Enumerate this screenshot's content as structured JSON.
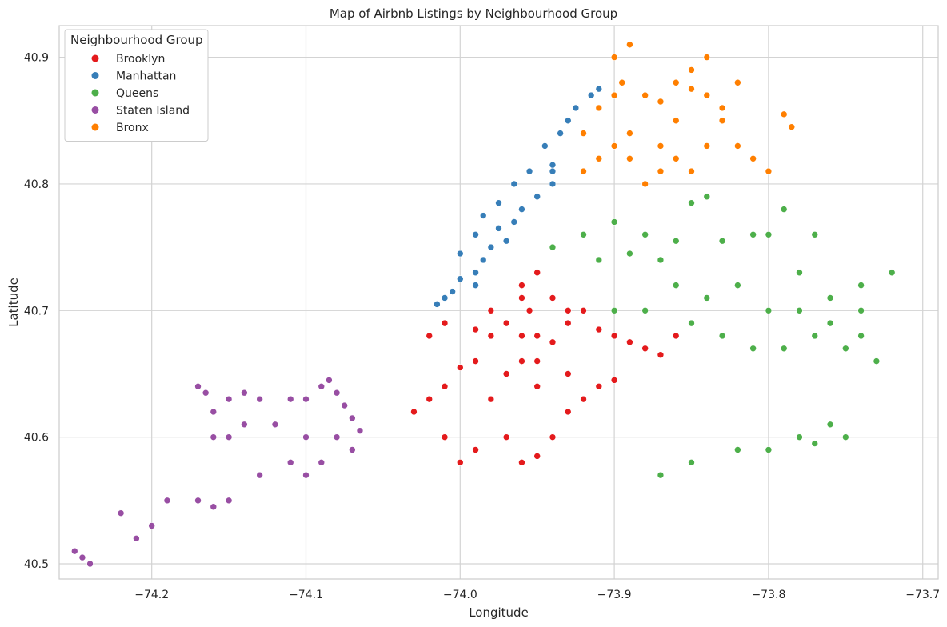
{
  "chart_data": {
    "type": "scatter",
    "title": "Map of Airbnb Listings by Neighbourhood Group",
    "xlabel": "Longitude",
    "ylabel": "Latitude",
    "xlim": [
      -74.26,
      -73.69
    ],
    "ylim": [
      40.488,
      40.925
    ],
    "xticks": [
      -74.2,
      -74.1,
      -74.0,
      -73.9,
      -73.8,
      -73.7
    ],
    "xtick_labels": [
      "−74.2",
      "−74.1",
      "−74.0",
      "−73.9",
      "−73.8",
      "−73.7"
    ],
    "yticks": [
      40.5,
      40.6,
      40.7,
      40.8,
      40.9
    ],
    "ytick_labels": [
      "40.5",
      "40.6",
      "40.7",
      "40.8",
      "40.9"
    ],
    "grid": true,
    "legend": {
      "title": "Neighbourhood Group",
      "position": "top-left"
    },
    "series": [
      {
        "name": "Brooklyn",
        "color": "#e41a1c",
        "points": [
          [
            -73.95,
            40.73
          ],
          [
            -73.96,
            40.72
          ],
          [
            -73.94,
            40.71
          ],
          [
            -73.955,
            40.7
          ],
          [
            -73.97,
            40.69
          ],
          [
            -73.99,
            40.685
          ],
          [
            -73.98,
            40.68
          ],
          [
            -73.96,
            40.68
          ],
          [
            -73.95,
            40.68
          ],
          [
            -73.94,
            40.675
          ],
          [
            -73.93,
            40.69
          ],
          [
            -73.92,
            40.7
          ],
          [
            -73.91,
            40.685
          ],
          [
            -73.9,
            40.68
          ],
          [
            -73.89,
            40.675
          ],
          [
            -73.88,
            40.67
          ],
          [
            -73.87,
            40.665
          ],
          [
            -73.86,
            40.68
          ],
          [
            -73.99,
            40.66
          ],
          [
            -74.0,
            40.655
          ],
          [
            -74.02,
            40.63
          ],
          [
            -74.03,
            40.62
          ],
          [
            -74.01,
            40.6
          ],
          [
            -74.0,
            40.58
          ],
          [
            -73.99,
            40.59
          ],
          [
            -73.97,
            40.6
          ],
          [
            -73.96,
            40.58
          ],
          [
            -73.95,
            40.585
          ],
          [
            -73.94,
            40.6
          ],
          [
            -73.93,
            40.62
          ],
          [
            -73.92,
            40.63
          ],
          [
            -73.91,
            40.64
          ],
          [
            -73.9,
            40.645
          ],
          [
            -73.93,
            40.65
          ],
          [
            -73.95,
            40.64
          ],
          [
            -73.97,
            40.65
          ],
          [
            -73.98,
            40.63
          ],
          [
            -74.01,
            40.64
          ],
          [
            -74.02,
            40.68
          ],
          [
            -74.01,
            40.69
          ],
          [
            -73.98,
            40.7
          ],
          [
            -73.96,
            40.71
          ],
          [
            -73.93,
            40.7
          ],
          [
            -73.95,
            40.66
          ],
          [
            -73.96,
            40.66
          ]
        ]
      },
      {
        "name": "Manhattan",
        "color": "#377eb8",
        "points": [
          [
            -74.015,
            40.705
          ],
          [
            -74.005,
            40.715
          ],
          [
            -74.0,
            40.725
          ],
          [
            -73.99,
            40.73
          ],
          [
            -73.985,
            40.74
          ],
          [
            -74.0,
            40.745
          ],
          [
            -73.98,
            40.75
          ],
          [
            -73.97,
            40.755
          ],
          [
            -73.99,
            40.76
          ],
          [
            -73.975,
            40.765
          ],
          [
            -73.965,
            40.77
          ],
          [
            -73.96,
            40.78
          ],
          [
            -73.985,
            40.775
          ],
          [
            -73.975,
            40.785
          ],
          [
            -73.95,
            40.79
          ],
          [
            -73.94,
            40.8
          ],
          [
            -73.965,
            40.8
          ],
          [
            -73.955,
            40.81
          ],
          [
            -73.94,
            40.815
          ],
          [
            -73.945,
            40.83
          ],
          [
            -73.935,
            40.84
          ],
          [
            -73.93,
            40.85
          ],
          [
            -73.925,
            40.86
          ],
          [
            -73.915,
            40.87
          ],
          [
            -73.91,
            40.875
          ],
          [
            -73.94,
            40.81
          ],
          [
            -73.99,
            40.72
          ],
          [
            -74.01,
            40.71
          ]
        ]
      },
      {
        "name": "Queens",
        "color": "#4daf4a",
        "points": [
          [
            -73.94,
            40.75
          ],
          [
            -73.92,
            40.76
          ],
          [
            -73.9,
            40.77
          ],
          [
            -73.88,
            40.76
          ],
          [
            -73.86,
            40.755
          ],
          [
            -73.87,
            40.74
          ],
          [
            -73.89,
            40.745
          ],
          [
            -73.91,
            40.74
          ],
          [
            -73.86,
            40.72
          ],
          [
            -73.84,
            40.71
          ],
          [
            -73.82,
            40.72
          ],
          [
            -73.8,
            40.7
          ],
          [
            -73.78,
            40.7
          ],
          [
            -73.76,
            40.69
          ],
          [
            -73.74,
            40.68
          ],
          [
            -73.73,
            40.66
          ],
          [
            -73.74,
            40.7
          ],
          [
            -73.76,
            40.71
          ],
          [
            -73.78,
            40.73
          ],
          [
            -73.81,
            40.76
          ],
          [
            -73.83,
            40.755
          ],
          [
            -73.8,
            40.76
          ],
          [
            -73.79,
            40.78
          ],
          [
            -73.77,
            40.76
          ],
          [
            -73.85,
            40.69
          ],
          [
            -73.83,
            40.68
          ],
          [
            -73.81,
            40.67
          ],
          [
            -73.79,
            40.67
          ],
          [
            -73.77,
            40.68
          ],
          [
            -73.75,
            40.67
          ],
          [
            -73.84,
            40.79
          ],
          [
            -73.85,
            40.785
          ],
          [
            -73.72,
            40.73
          ],
          [
            -73.74,
            40.72
          ],
          [
            -73.78,
            40.6
          ],
          [
            -73.8,
            40.59
          ],
          [
            -73.82,
            40.59
          ],
          [
            -73.77,
            40.595
          ],
          [
            -73.75,
            40.6
          ],
          [
            -73.76,
            40.61
          ],
          [
            -73.85,
            40.58
          ],
          [
            -73.87,
            40.57
          ],
          [
            -73.9,
            40.7
          ],
          [
            -73.88,
            40.7
          ]
        ]
      },
      {
        "name": "Staten Island",
        "color": "#984ea3",
        "points": [
          [
            -74.085,
            40.645
          ],
          [
            -74.08,
            40.635
          ],
          [
            -74.075,
            40.625
          ],
          [
            -74.07,
            40.615
          ],
          [
            -74.065,
            40.605
          ],
          [
            -74.09,
            40.64
          ],
          [
            -74.1,
            40.63
          ],
          [
            -74.11,
            40.63
          ],
          [
            -74.13,
            40.63
          ],
          [
            -74.14,
            40.635
          ],
          [
            -74.15,
            40.63
          ],
          [
            -74.165,
            40.635
          ],
          [
            -74.17,
            40.64
          ],
          [
            -74.16,
            40.62
          ],
          [
            -74.16,
            40.6
          ],
          [
            -74.15,
            40.6
          ],
          [
            -74.14,
            40.61
          ],
          [
            -74.12,
            40.61
          ],
          [
            -74.1,
            40.6
          ],
          [
            -74.09,
            40.58
          ],
          [
            -74.1,
            40.57
          ],
          [
            -74.11,
            40.58
          ],
          [
            -74.13,
            40.57
          ],
          [
            -74.15,
            40.55
          ],
          [
            -74.16,
            40.545
          ],
          [
            -74.17,
            40.55
          ],
          [
            -74.19,
            40.55
          ],
          [
            -74.2,
            40.53
          ],
          [
            -74.21,
            40.52
          ],
          [
            -74.22,
            40.54
          ],
          [
            -74.24,
            40.5
          ],
          [
            -74.25,
            40.51
          ],
          [
            -74.245,
            40.505
          ],
          [
            -74.08,
            40.6
          ],
          [
            -74.07,
            40.59
          ]
        ]
      },
      {
        "name": "Bronx",
        "color": "#ff7f00",
        "points": [
          [
            -73.92,
            40.81
          ],
          [
            -73.91,
            40.82
          ],
          [
            -73.9,
            40.83
          ],
          [
            -73.89,
            40.84
          ],
          [
            -73.92,
            40.84
          ],
          [
            -73.91,
            40.86
          ],
          [
            -73.9,
            40.87
          ],
          [
            -73.895,
            40.88
          ],
          [
            -73.9,
            40.9
          ],
          [
            -73.89,
            40.91
          ],
          [
            -73.88,
            40.87
          ],
          [
            -73.87,
            40.865
          ],
          [
            -73.86,
            40.88
          ],
          [
            -73.85,
            40.89
          ],
          [
            -73.84,
            40.9
          ],
          [
            -73.85,
            40.875
          ],
          [
            -73.86,
            40.85
          ],
          [
            -73.87,
            40.83
          ],
          [
            -73.86,
            40.82
          ],
          [
            -73.85,
            40.81
          ],
          [
            -73.84,
            40.83
          ],
          [
            -73.83,
            40.85
          ],
          [
            -73.82,
            40.83
          ],
          [
            -73.81,
            40.82
          ],
          [
            -73.8,
            40.81
          ],
          [
            -73.83,
            40.86
          ],
          [
            -73.84,
            40.87
          ],
          [
            -73.82,
            40.88
          ],
          [
            -73.79,
            40.855
          ],
          [
            -73.785,
            40.845
          ],
          [
            -73.89,
            40.82
          ],
          [
            -73.88,
            40.8
          ],
          [
            -73.87,
            40.81
          ]
        ]
      }
    ]
  }
}
